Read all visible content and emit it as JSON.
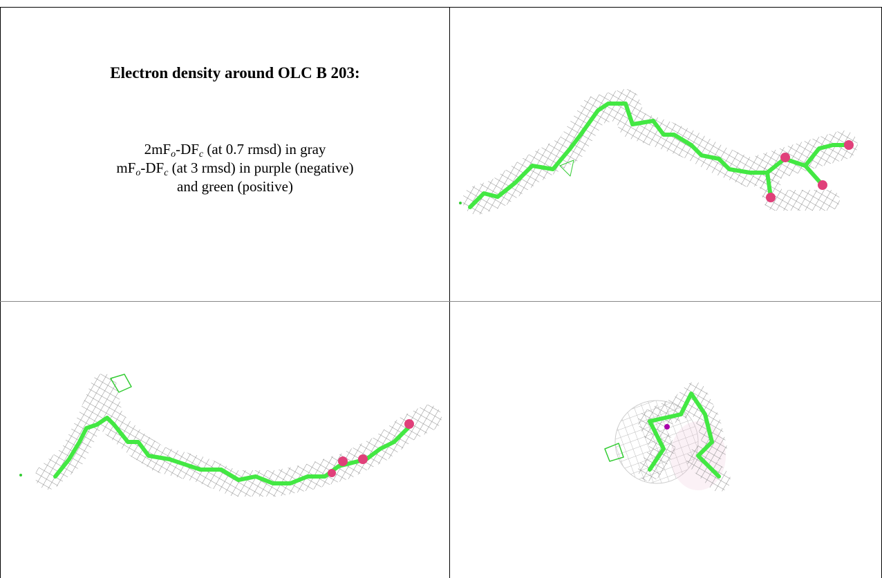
{
  "title": "Electron density around OLC B 203:",
  "legend": [
    [
      "2mF",
      "o",
      "-DF",
      "c",
      " (at 0.7 rmsd) in gray"
    ],
    [
      "mF",
      "o",
      "-DF",
      "c",
      " (at 3 rmsd) in purple (negative)"
    ],
    [
      "and green (positive)"
    ]
  ]
}
